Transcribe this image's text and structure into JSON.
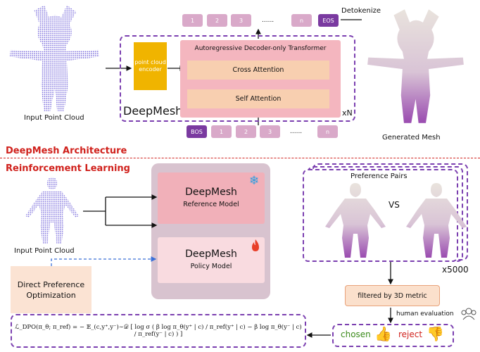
{
  "architecture": {
    "section_title": "DeepMesh Architecture",
    "input_label": "Input Point Cloud",
    "output_label": "Generated Mesh",
    "encoder_label": "point cloud encoder",
    "model_name": "DeepMesh",
    "transformer_title": "Autoregressive Decoder-only Transformer",
    "cross_attention": "Cross Attention",
    "self_attention": "Self Attention",
    "repeat": "xN",
    "detokenize": "Detokenize",
    "output_tokens": [
      "1",
      "2",
      "3",
      "......",
      "n",
      "EOS"
    ],
    "input_tokens": [
      "BOS",
      "1",
      "2",
      "3",
      "......",
      "n"
    ]
  },
  "rl": {
    "section_title": "Reinforcement Learning",
    "input_label": "Input Point Cloud",
    "reference_model": {
      "name": "DeepMesh",
      "subtitle": "Reference Model",
      "icon": "snowflake-icon"
    },
    "policy_model": {
      "name": "DeepMesh",
      "subtitle": "Policy Model",
      "icon": "fire-icon"
    },
    "dpo_label": "Direct Preference Optimization",
    "preference_pairs": "Preference Pairs",
    "vs": "VS",
    "multiplier": "x5000",
    "filter_label": "filtered by 3D metric",
    "human_eval": "human evaluation",
    "chosen": "chosen",
    "reject": "reject",
    "formula": "ℒ_DPO(π_θ; π_ref) = − 𝔼_(c,y⁺,y⁻)∼𝒟 [ log σ ( β log π_θ(y⁺ | c) / π_ref(y⁺ | c) − β log π_θ(y⁻ | c) / π_ref(y⁻ | c) ) ]"
  },
  "colors": {
    "accent_red": "#d0211c",
    "purple": "#7b3fb0",
    "encoder": "#f0b400",
    "transformer": "#f4b6bf",
    "attention": "#f8cfb0",
    "chosen": "#3a8a1a"
  }
}
